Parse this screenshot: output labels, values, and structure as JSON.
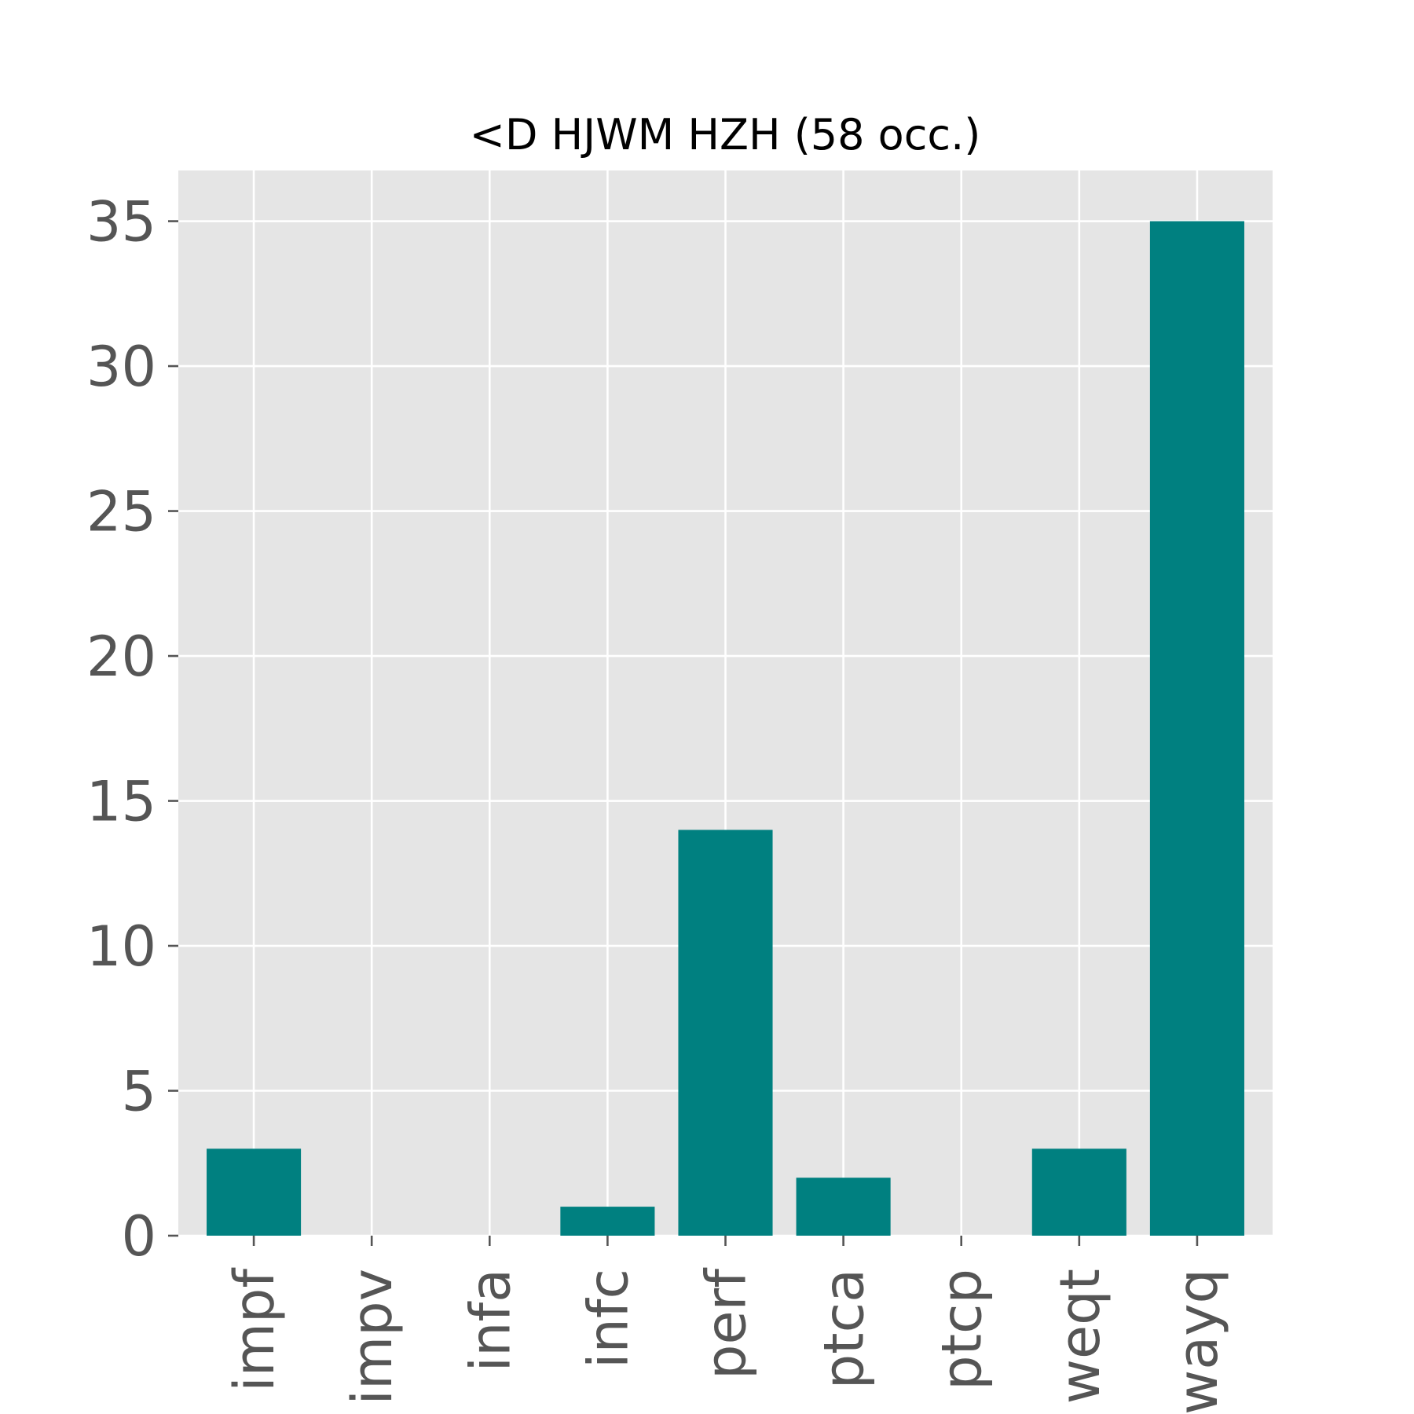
{
  "chart_data": {
    "type": "bar",
    "title": "<D HJWM HZH (58 occ.)",
    "xlabel": "",
    "ylabel": "",
    "categories": [
      "impf",
      "impv",
      "infa",
      "infc",
      "perf",
      "ptca",
      "ptcp",
      "weqt",
      "wayq"
    ],
    "values": [
      3,
      0,
      0,
      1,
      14,
      2,
      0,
      3,
      35
    ],
    "ylim": [
      0,
      36.75
    ],
    "yticks": [
      0,
      5,
      10,
      15,
      20,
      25,
      30,
      35
    ],
    "grid": true,
    "legend": "none",
    "bar_color": "#008080",
    "plot_background": "#e5e5e5",
    "grid_color": "#ffffff"
  }
}
